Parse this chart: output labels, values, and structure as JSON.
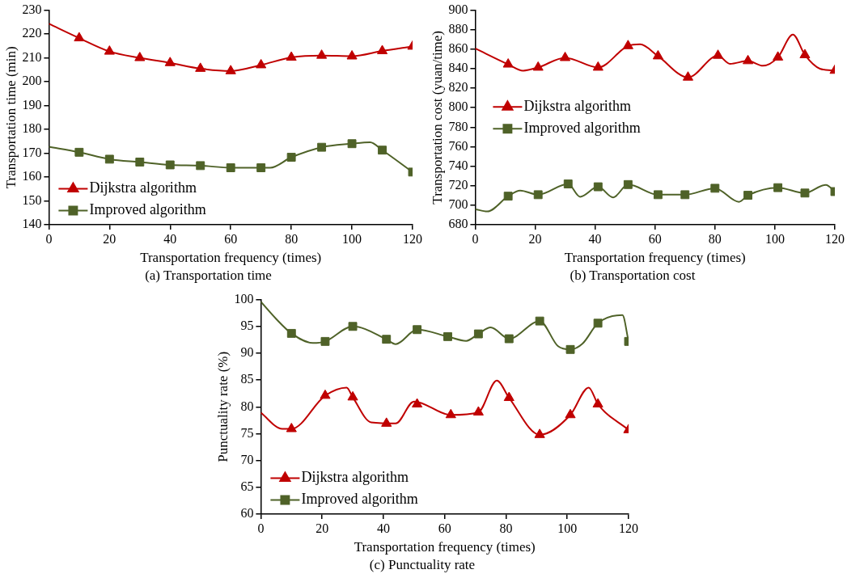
{
  "chart_data": [
    {
      "type": "line",
      "title": "(a) Transportation time",
      "xlabel": "Transportation frequency (times)",
      "ylabel": "Transportation time (min)",
      "xlim": [
        0,
        120
      ],
      "xticks": [
        0,
        20,
        40,
        60,
        80,
        100,
        120
      ],
      "ylim": [
        140,
        230
      ],
      "yticks": [
        140,
        150,
        160,
        170,
        180,
        190,
        200,
        210,
        220,
        230
      ],
      "grid": false,
      "legend": "bottom left",
      "series": [
        {
          "type": "line",
          "marker": "none",
          "color": "#c00000",
          "x": [
            0,
            10,
            20,
            30,
            40,
            50,
            60,
            70,
            80,
            90,
            100,
            110,
            120
          ],
          "values": [
            224.3,
            218.3,
            212.7,
            210.0,
            207.9,
            205.5,
            204.5,
            207.0,
            210.2,
            211.0,
            210.7,
            212.9,
            214.8
          ]
        },
        {
          "type": "scatter",
          "name": "Dijkstra algorithm",
          "marker": "triangle",
          "color": "#c00000",
          "x": [
            10,
            20,
            30,
            40,
            50,
            60,
            70,
            80,
            90,
            100,
            110,
            120
          ],
          "values": [
            218.3,
            212.7,
            210.0,
            207.9,
            205.5,
            204.5,
            207.0,
            210.2,
            211.0,
            210.7,
            212.9,
            214.8
          ]
        },
        {
          "type": "line",
          "marker": "none",
          "color": "#4f6228",
          "x": [
            0,
            10,
            20,
            30,
            40,
            50,
            60,
            70,
            73,
            80,
            90,
            100,
            106,
            110,
            120
          ],
          "values": [
            172.7,
            170.4,
            167.5,
            166.3,
            165.1,
            164.8,
            163.9,
            163.9,
            163.9,
            168.3,
            172.5,
            174.0,
            174.6,
            171.3,
            162.1
          ]
        },
        {
          "type": "scatter",
          "name": "Improved algorithm",
          "marker": "square",
          "color": "#4f6228",
          "x": [
            10,
            20,
            30,
            40,
            50,
            60,
            70,
            80,
            90,
            100,
            110,
            120
          ],
          "values": [
            170.4,
            167.5,
            166.3,
            165.1,
            164.8,
            163.9,
            163.9,
            168.3,
            172.5,
            174.0,
            171.3,
            162.1
          ]
        }
      ]
    },
    {
      "type": "line",
      "title": "(b) Transportation cost",
      "xlabel": "Transportation frequency (times)",
      "ylabel": "Transportation cost (yuan/time)",
      "xlim": [
        0,
        120
      ],
      "xticks": [
        0,
        20,
        40,
        60,
        80,
        100,
        120
      ],
      "ylim": [
        680,
        900
      ],
      "yticks": [
        680,
        700,
        720,
        740,
        760,
        780,
        800,
        820,
        840,
        860,
        880,
        900
      ],
      "grid": false,
      "legend": "left",
      "series": [
        {
          "type": "line",
          "marker": "none",
          "color": "#c00000",
          "x": [
            0,
            11,
            16,
            21,
            30,
            41,
            51,
            55,
            61,
            71,
            81,
            85,
            91,
            96,
            101,
            106,
            110,
            115,
            120
          ],
          "values": [
            860.8,
            844.5,
            838.0,
            841.3,
            851.2,
            841.3,
            863.4,
            865.0,
            852.9,
            831.1,
            853.5,
            845.0,
            848.0,
            843.0,
            851.7,
            875.0,
            854.1,
            840.0,
            838.1
          ]
        },
        {
          "type": "scatter",
          "name": "Dijkstra algorithm",
          "marker": "triangle",
          "color": "#c00000",
          "x": [
            11,
            21,
            30,
            41,
            51,
            61,
            71,
            81,
            91,
            101,
            110,
            120
          ],
          "values": [
            844.5,
            841.3,
            851.2,
            841.3,
            863.4,
            852.9,
            831.1,
            853.5,
            848.0,
            851.7,
            854.1,
            838.1
          ]
        },
        {
          "type": "line",
          "marker": "none",
          "color": "#4f6228",
          "x": [
            0,
            4,
            11,
            15,
            21,
            31,
            35,
            41,
            46,
            51,
            61,
            70,
            80,
            88,
            91,
            101,
            110,
            117,
            120
          ],
          "values": [
            696.0,
            693.6,
            709.3,
            715.0,
            710.8,
            721.8,
            708.7,
            718.9,
            708.0,
            721.2,
            710.8,
            710.8,
            717.4,
            703.5,
            710.2,
            718.0,
            712.5,
            720.9,
            714.0
          ]
        },
        {
          "type": "scatter",
          "name": "Improved algorithm",
          "marker": "square",
          "color": "#4f6228",
          "x": [
            11,
            21,
            31,
            41,
            51,
            61,
            70,
            80,
            91,
            101,
            110,
            120
          ],
          "values": [
            709.3,
            710.8,
            721.8,
            718.9,
            721.2,
            710.8,
            710.8,
            717.4,
            710.2,
            718.0,
            712.5,
            714.0
          ]
        }
      ]
    },
    {
      "type": "line",
      "title": "(c) Punctuality rate",
      "xlabel": "Transportation frequency (times)",
      "ylabel": "Punctuality rate (%)",
      "xlim": [
        0,
        120
      ],
      "xticks": [
        0,
        20,
        40,
        60,
        80,
        100,
        120
      ],
      "ylim": [
        60,
        100
      ],
      "yticks": [
        60,
        65,
        70,
        75,
        80,
        85,
        90,
        95,
        100
      ],
      "grid": false,
      "legend": "bottom left",
      "series": [
        {
          "type": "line",
          "marker": "none",
          "color": "#c00000",
          "x": [
            0,
            7,
            10,
            21,
            28,
            30,
            36,
            44,
            50,
            62,
            71,
            77,
            81,
            91,
            101,
            107,
            110,
            120
          ],
          "values": [
            78.9,
            75.9,
            75.9,
            82.1,
            83.6,
            81.8,
            77.1,
            76.9,
            81.0,
            78.5,
            79.0,
            84.9,
            81.7,
            74.8,
            78.5,
            83.6,
            80.5,
            75.7
          ]
        },
        {
          "type": "scatter",
          "name": "Dijkstra algorithm",
          "marker": "triangle",
          "color": "#c00000",
          "x": [
            10,
            21,
            30,
            41,
            51,
            62,
            71,
            81,
            91,
            101,
            110,
            120
          ],
          "values": [
            75.9,
            82.1,
            81.8,
            76.9,
            80.5,
            78.5,
            79.0,
            81.7,
            74.8,
            78.5,
            80.5,
            75.7
          ]
        },
        {
          "type": "line",
          "marker": "none",
          "color": "#4f6228",
          "x": [
            0,
            5,
            10,
            17,
            21,
            30,
            41,
            44,
            51,
            61,
            67,
            71,
            75,
            81,
            91,
            97,
            101,
            105,
            110,
            118,
            120
          ],
          "values": [
            99.6,
            96.4,
            93.7,
            91.9,
            92.2,
            95.0,
            92.6,
            91.7,
            94.4,
            93.1,
            92.3,
            93.6,
            94.8,
            92.7,
            96.0,
            91.3,
            90.7,
            91.8,
            95.6,
            97.1,
            92.2
          ]
        },
        {
          "type": "scatter",
          "name": "Improved algorithm",
          "marker": "square",
          "color": "#4f6228",
          "x": [
            10,
            21,
            30,
            41,
            51,
            61,
            71,
            81,
            91,
            101,
            110,
            120
          ],
          "values": [
            93.7,
            92.2,
            95.0,
            92.6,
            94.4,
            93.1,
            93.6,
            92.7,
            96.0,
            90.7,
            95.6,
            92.2
          ]
        }
      ]
    }
  ]
}
